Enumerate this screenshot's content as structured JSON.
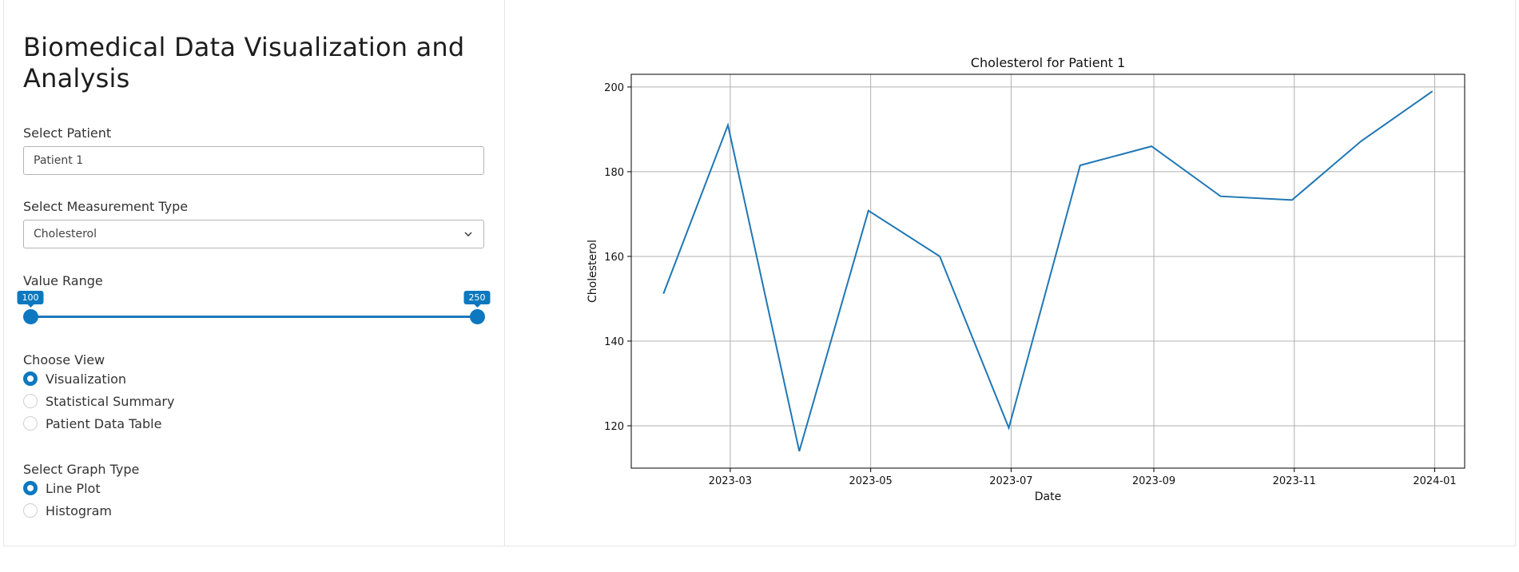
{
  "app_title": "Biomedical Data Visualization and Analysis",
  "patient": {
    "label": "Select Patient",
    "value": "Patient 1"
  },
  "measurement": {
    "label": "Select Measurement Type",
    "value": "Cholesterol"
  },
  "value_range": {
    "label": "Value Range",
    "min": 100,
    "max": 250,
    "low": 100,
    "high": 250,
    "low_label": "100",
    "high_label": "250"
  },
  "view": {
    "label": "Choose View",
    "options": [
      "Visualization",
      "Statistical Summary",
      "Patient Data Table"
    ],
    "selected": "Visualization"
  },
  "graph_type": {
    "label": "Select Graph Type",
    "options": [
      "Line Plot",
      "Histogram"
    ],
    "selected": "Line Plot"
  },
  "colors": {
    "accent": "#0c78bf",
    "line": "#1f77b4",
    "grid": "#b0b0b0"
  },
  "chart_data": {
    "type": "line",
    "title": "Cholesterol for Patient 1",
    "xlabel": "Date",
    "ylabel": "Cholesterol",
    "grid": true,
    "x": [
      "2023-01-31",
      "2023-02-28",
      "2023-03-31",
      "2023-04-30",
      "2023-05-31",
      "2023-06-30",
      "2023-07-31",
      "2023-08-31",
      "2023-09-30",
      "2023-10-31",
      "2023-11-30",
      "2023-12-31"
    ],
    "series": [
      {
        "values": [
          151.2,
          191.0,
          114.0,
          170.8,
          160.0,
          119.5,
          181.5,
          186.0,
          174.2,
          173.3,
          187.2,
          199.0
        ]
      }
    ],
    "ylim": [
      110,
      203
    ],
    "xlim": [
      "2023-01-17",
      "2024-01-14"
    ],
    "yticks": [
      120,
      140,
      160,
      180,
      200
    ],
    "xticks": [
      "2023-03",
      "2023-05",
      "2023-07",
      "2023-09",
      "2023-11",
      "2024-01"
    ]
  }
}
